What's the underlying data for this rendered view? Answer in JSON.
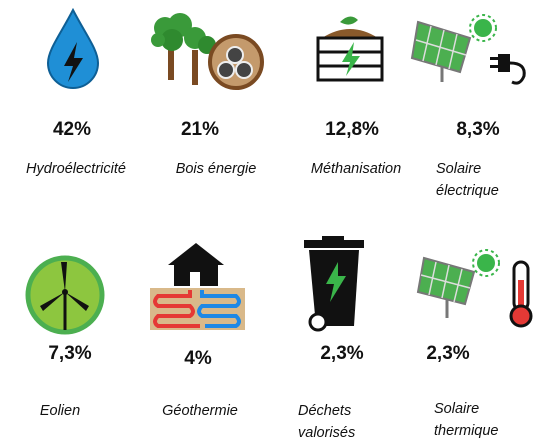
{
  "items": [
    {
      "value": "42%",
      "label": [
        "Hydroélectricité"
      ]
    },
    {
      "value": "21%",
      "label": [
        "Bois énergie"
      ]
    },
    {
      "value": "12,8%",
      "label": [
        "Méthanisation"
      ]
    },
    {
      "value": "8,3%",
      "label": [
        "Solaire",
        "électrique"
      ]
    },
    {
      "value": "7,3%",
      "label": [
        "Eolien"
      ]
    },
    {
      "value": "4%",
      "label": [
        "Géothermie"
      ]
    },
    {
      "value": "2,3%",
      "label": [
        "Déchets",
        "valorisés"
      ]
    },
    {
      "value": "2,3%",
      "label": [
        "Solaire",
        "thermique"
      ]
    }
  ]
}
